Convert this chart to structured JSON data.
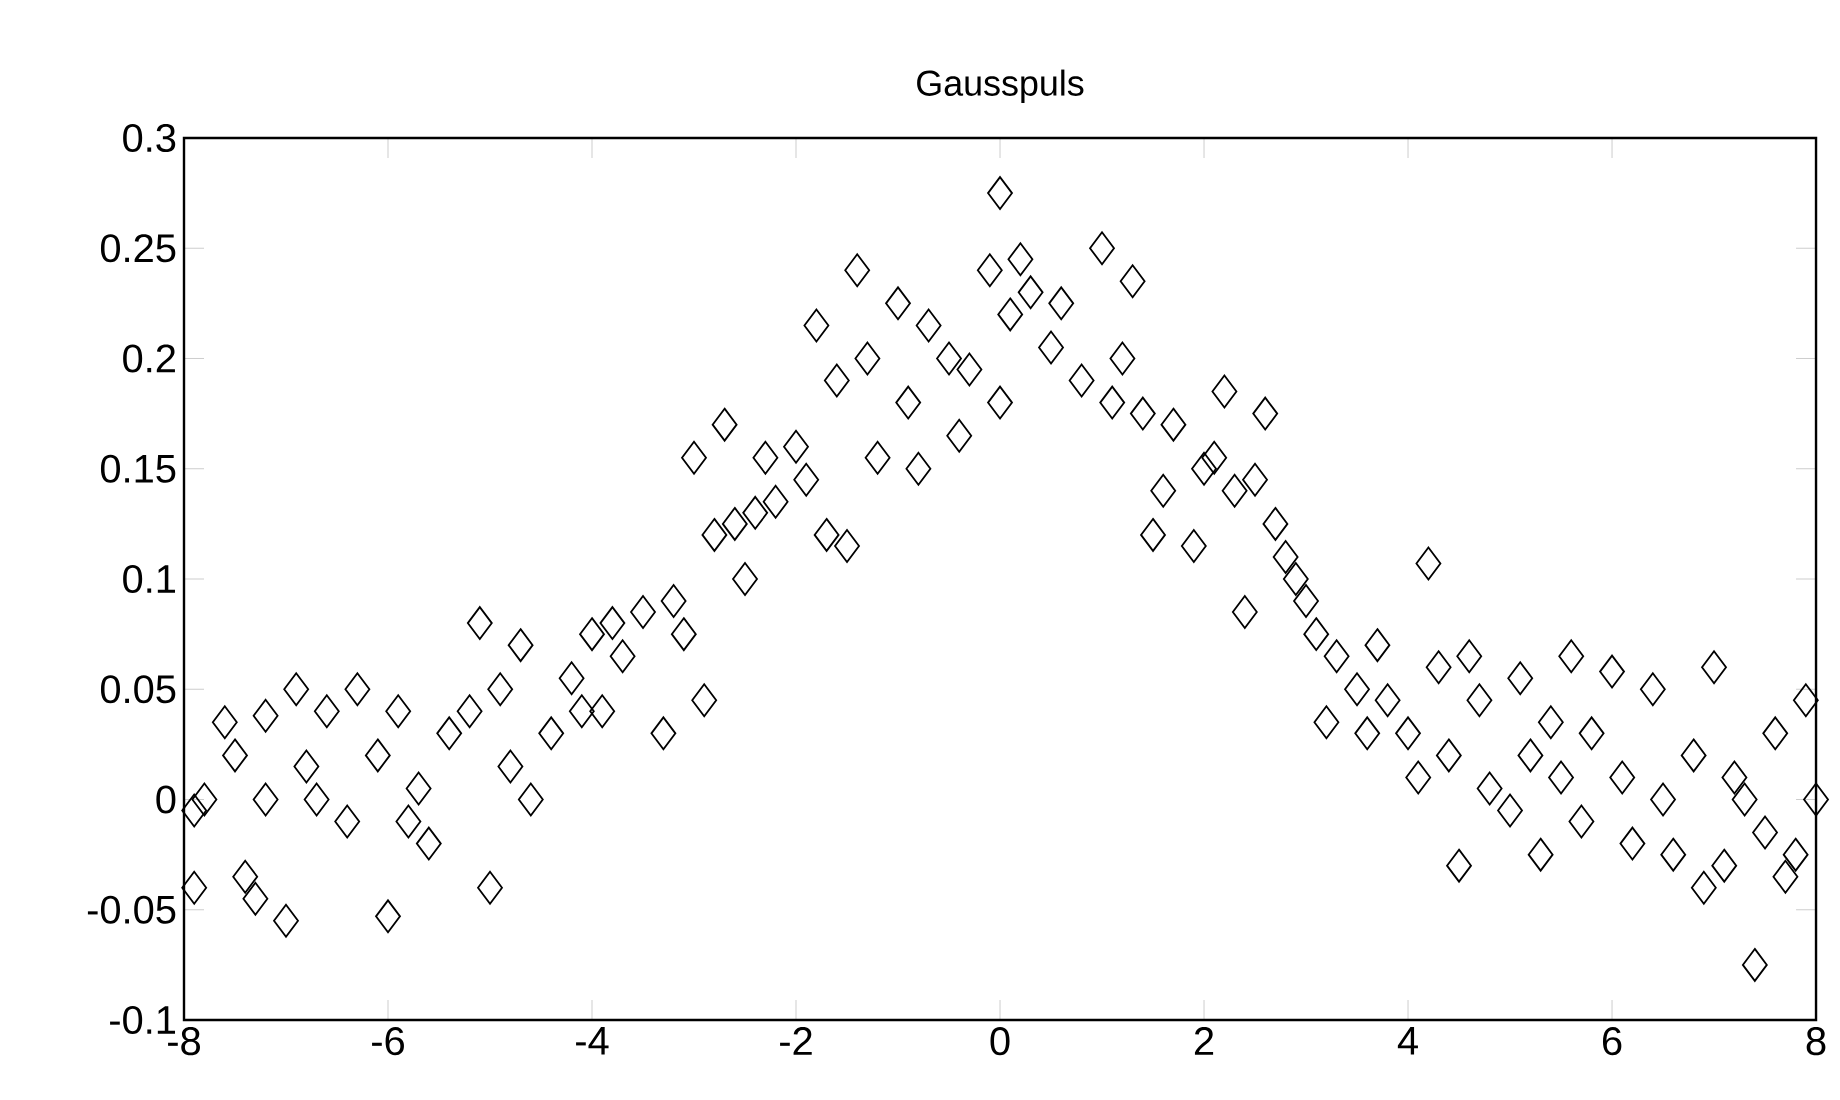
{
  "chart_data": {
    "type": "scatter",
    "title": "Gausspuls",
    "marker": "diamond",
    "xlim": [
      -8,
      8
    ],
    "ylim": [
      -0.1,
      0.3
    ],
    "xticks": [
      -8,
      -6,
      -4,
      -2,
      0,
      2,
      4,
      6,
      8
    ],
    "yticks": [
      -0.1,
      -0.05,
      0,
      0.05,
      0.1,
      0.15,
      0.2,
      0.25,
      0.3
    ],
    "series": [
      {
        "color": "#000000",
        "x": [
          -7.9,
          -7.9,
          -7.8,
          -7.6,
          -7.5,
          -7.4,
          -7.3,
          -7.2,
          -7.2,
          -7.0,
          -6.9,
          -6.8,
          -6.7,
          -6.6,
          -6.4,
          -6.3,
          -6.1,
          -6.0,
          -5.9,
          -5.8,
          -5.7,
          -5.6,
          -5.4,
          -5.2,
          -5.1,
          -5.0,
          -4.9,
          -4.8,
          -4.7,
          -4.6,
          -4.4,
          -4.2,
          -4.1,
          -4.0,
          -3.9,
          -3.8,
          -3.7,
          -3.5,
          -3.3,
          -3.2,
          -3.1,
          -3.0,
          -2.9,
          -2.8,
          -2.7,
          -2.6,
          -2.5,
          -2.4,
          -2.3,
          -2.2,
          -2.0,
          -1.9,
          -1.8,
          -1.7,
          -1.6,
          -1.5,
          -1.4,
          -1.3,
          -1.2,
          -1.0,
          -0.9,
          -0.8,
          -0.7,
          -0.5,
          -0.4,
          -0.3,
          -0.1,
          0.0,
          0.0,
          0.1,
          0.2,
          0.3,
          0.5,
          0.6,
          0.8,
          1.0,
          1.1,
          1.2,
          1.3,
          1.4,
          1.5,
          1.6,
          1.7,
          1.9,
          2.0,
          2.1,
          2.2,
          2.3,
          2.4,
          2.5,
          2.6,
          2.7,
          2.8,
          2.9,
          3.0,
          3.1,
          3.2,
          3.3,
          3.5,
          3.6,
          3.7,
          3.8,
          4.0,
          4.1,
          4.2,
          4.3,
          4.4,
          4.5,
          4.6,
          4.7,
          4.8,
          5.0,
          5.1,
          5.2,
          5.3,
          5.4,
          5.5,
          5.6,
          5.7,
          5.8,
          6.0,
          6.1,
          6.2,
          6.4,
          6.5,
          6.6,
          6.8,
          6.9,
          7.0,
          7.1,
          7.2,
          7.3,
          7.4,
          7.5,
          7.6,
          7.7,
          7.8,
          7.9,
          8.0
        ],
        "values": [
          -0.005,
          -0.04,
          0.0,
          0.035,
          0.02,
          -0.035,
          -0.045,
          0.0,
          0.038,
          -0.055,
          0.05,
          0.015,
          0.0,
          0.04,
          -0.01,
          0.05,
          0.02,
          -0.053,
          0.04,
          -0.01,
          0.005,
          -0.02,
          0.03,
          0.04,
          0.08,
          -0.04,
          0.05,
          0.015,
          0.07,
          0.0,
          0.03,
          0.055,
          0.04,
          0.075,
          0.04,
          0.08,
          0.065,
          0.085,
          0.03,
          0.09,
          0.075,
          0.155,
          0.045,
          0.12,
          0.17,
          0.125,
          0.1,
          0.13,
          0.155,
          0.135,
          0.16,
          0.145,
          0.215,
          0.12,
          0.19,
          0.115,
          0.24,
          0.2,
          0.155,
          0.225,
          0.18,
          0.15,
          0.215,
          0.2,
          0.165,
          0.195,
          0.24,
          0.275,
          0.18,
          0.22,
          0.245,
          0.23,
          0.205,
          0.225,
          0.19,
          0.25,
          0.18,
          0.2,
          0.235,
          0.175,
          0.12,
          0.14,
          0.17,
          0.115,
          0.15,
          0.155,
          0.185,
          0.14,
          0.085,
          0.145,
          0.175,
          0.125,
          0.11,
          0.1,
          0.09,
          0.075,
          0.035,
          0.065,
          0.05,
          0.03,
          0.07,
          0.045,
          0.03,
          0.01,
          0.107,
          0.06,
          0.02,
          -0.03,
          0.065,
          0.045,
          0.005,
          -0.005,
          0.055,
          0.02,
          -0.025,
          0.035,
          0.01,
          0.065,
          -0.01,
          0.03,
          0.058,
          0.01,
          -0.02,
          0.05,
          0.0,
          -0.025,
          0.02,
          -0.04,
          0.06,
          -0.03,
          0.01,
          0.0,
          -0.075,
          -0.015,
          0.03,
          -0.035,
          -0.025,
          0.045,
          0.0
        ]
      }
    ]
  }
}
